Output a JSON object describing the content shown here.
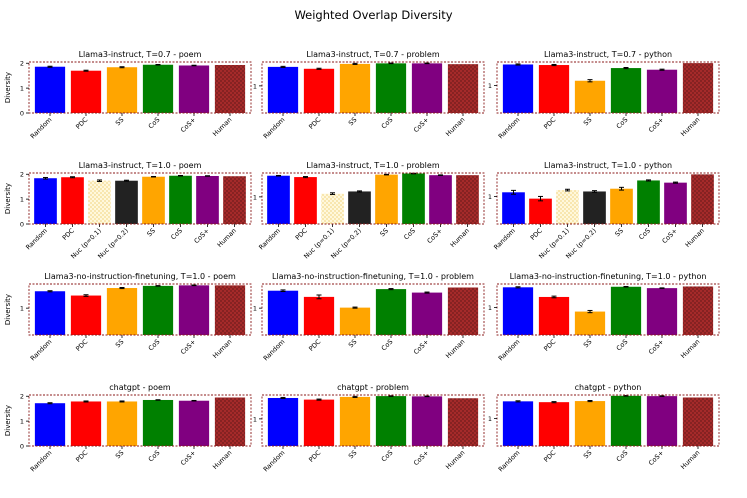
{
  "figure": {
    "suptitle": "Weighted Overlap Diversity"
  },
  "colors": {
    "Random": "#0000ff",
    "PDC": "#ff0000",
    "SS": "#ffa500",
    "CoS": "#008000",
    "CoS+": "#800080",
    "Human": "#a52a2a",
    "Nuc (p=0.1)": "#fff8dc",
    "Nuc (p=0.2)": "#222222",
    "spine": "#8b1a1a"
  },
  "chart_data": [
    {
      "type": "bar",
      "title": "Llama3-instruct, T=0.7 - poem",
      "ylabel": "Diversity",
      "ylim": [
        0,
        2.05
      ],
      "yticks": [
        0,
        1,
        2
      ],
      "categories": [
        "Random",
        "PDC",
        "SS",
        "CoS",
        "CoS+",
        "Human"
      ],
      "values": [
        1.86,
        1.7,
        1.84,
        1.94,
        1.91,
        1.93
      ],
      "errors": [
        0.02,
        0.02,
        0.02,
        0.01,
        0.01,
        0.0
      ]
    },
    {
      "type": "bar",
      "title": "Llama3-instruct, T=0.7 - problem",
      "ylabel": "",
      "ylim": [
        0,
        1.88
      ],
      "yticks": [
        1
      ],
      "categories": [
        "Random",
        "PDC",
        "SS",
        "CoS",
        "CoS+",
        "Human"
      ],
      "values": [
        1.7,
        1.63,
        1.81,
        1.83,
        1.83,
        1.8
      ],
      "errors": [
        0.02,
        0.02,
        0.02,
        0.01,
        0.01,
        0.0
      ]
    },
    {
      "type": "bar",
      "title": "Llama3-instruct, T=0.7 - python",
      "ylabel": "",
      "ylim": [
        0,
        1.85
      ],
      "yticks": [
        1
      ],
      "categories": [
        "Random",
        "PDC",
        "SS",
        "CoS",
        "CoS+",
        "Human"
      ],
      "values": [
        1.76,
        1.74,
        1.17,
        1.63,
        1.57,
        1.81
      ],
      "errors": [
        0.02,
        0.02,
        0.04,
        0.02,
        0.02,
        0.0
      ]
    },
    {
      "type": "bar",
      "title": "Llama3-instruct, T=1.0 - poem",
      "ylabel": "Diversity",
      "ylim": [
        0,
        2.05
      ],
      "yticks": [
        0,
        1,
        2
      ],
      "categories": [
        "Random",
        "PDC",
        "Nuc (p=0.1)",
        "Nuc (p=0.2)",
        "SS",
        "CoS",
        "CoS+",
        "Human"
      ],
      "values": [
        1.84,
        1.88,
        1.74,
        1.74,
        1.9,
        1.94,
        1.93,
        1.92
      ],
      "errors": [
        0.03,
        0.02,
        0.03,
        0.02,
        0.01,
        0.01,
        0.01,
        0.0
      ]
    },
    {
      "type": "bar",
      "title": "Llama3-instruct, T=1.0 - problem",
      "ylabel": "",
      "ylim": [
        0,
        1.88
      ],
      "yticks": [
        1
      ],
      "categories": [
        "Random",
        "PDC",
        "Nuc (p=0.1)",
        "Nuc (p=0.2)",
        "SS",
        "CoS",
        "CoS+",
        "Human"
      ],
      "values": [
        1.78,
        1.73,
        1.12,
        1.2,
        1.82,
        1.86,
        1.8,
        1.8
      ],
      "errors": [
        0.01,
        0.02,
        0.03,
        0.02,
        0.01,
        0.01,
        0.01,
        0.0
      ]
    },
    {
      "type": "bar",
      "title": "Llama3-instruct, T=1.0 - python",
      "ylabel": "",
      "ylim": [
        0,
        1.85
      ],
      "yticks": [
        1
      ],
      "categories": [
        "Random",
        "PDC",
        "Nuc (p=0.1)",
        "Nuc (p=0.2)",
        "SS",
        "CoS",
        "CoS+",
        "Human"
      ],
      "values": [
        1.15,
        0.92,
        1.23,
        1.18,
        1.28,
        1.58,
        1.5,
        1.8
      ],
      "errors": [
        0.07,
        0.08,
        0.03,
        0.03,
        0.05,
        0.02,
        0.02,
        0.0
      ]
    },
    {
      "type": "bar",
      "title": "Llama3-no-instruction-finetuning, T=1.0 - poem",
      "ylabel": "Diversity",
      "ylim": [
        0,
        1.9
      ],
      "yticks": [
        1
      ],
      "categories": [
        "Random",
        "PDC",
        "SS",
        "CoS",
        "CoS+",
        "Human"
      ],
      "values": [
        1.63,
        1.47,
        1.75,
        1.83,
        1.85,
        1.85
      ],
      "errors": [
        0.02,
        0.03,
        0.02,
        0.01,
        0.01,
        0.0
      ]
    },
    {
      "type": "bar",
      "title": "Llama3-no-instruction-finetuning, T=1.0 - problem",
      "ylabel": "",
      "ylim": [
        0,
        1.9
      ],
      "yticks": [
        1
      ],
      "categories": [
        "Random",
        "PDC",
        "SS",
        "CoS",
        "CoS+",
        "Human"
      ],
      "values": [
        1.65,
        1.42,
        1.02,
        1.71,
        1.58,
        1.77
      ],
      "errors": [
        0.03,
        0.07,
        0.02,
        0.02,
        0.02,
        0.0
      ]
    },
    {
      "type": "bar",
      "title": "Llama3-no-instruction-finetuning, T=1.0 - python",
      "ylabel": "",
      "ylim": [
        0,
        1.85
      ],
      "yticks": [
        1
      ],
      "categories": [
        "Random",
        "PDC",
        "SS",
        "CoS",
        "CoS+",
        "Human"
      ],
      "values": [
        1.73,
        1.38,
        0.85,
        1.75,
        1.7,
        1.76
      ],
      "errors": [
        0.02,
        0.03,
        0.04,
        0.01,
        0.01,
        0.0
      ]
    },
    {
      "type": "bar",
      "title": "chatgpt - poem",
      "ylabel": "Diversity",
      "ylim": [
        0,
        2.05
      ],
      "yticks": [
        0,
        1,
        2
      ],
      "categories": [
        "Random",
        "PDC",
        "SS",
        "CoS",
        "CoS+",
        "Human"
      ],
      "values": [
        1.72,
        1.79,
        1.79,
        1.85,
        1.82,
        1.95
      ],
      "errors": [
        0.02,
        0.02,
        0.02,
        0.01,
        0.01,
        0.0
      ]
    },
    {
      "type": "bar",
      "title": "chatgpt - problem",
      "ylabel": "",
      "ylim": [
        0,
        1.88
      ],
      "yticks": [
        1
      ],
      "categories": [
        "Random",
        "PDC",
        "SS",
        "CoS",
        "CoS+",
        "Human"
      ],
      "values": [
        1.77,
        1.71,
        1.81,
        1.84,
        1.83,
        1.76
      ],
      "errors": [
        0.02,
        0.02,
        0.02,
        0.01,
        0.01,
        0.0
      ]
    },
    {
      "type": "bar",
      "title": "chatgpt - python",
      "ylabel": "",
      "ylim": [
        0,
        1.85
      ],
      "yticks": [
        1
      ],
      "categories": [
        "Random",
        "PDC",
        "SS",
        "CoS",
        "CoS+",
        "Human"
      ],
      "values": [
        1.62,
        1.59,
        1.63,
        1.82,
        1.81,
        1.76
      ],
      "errors": [
        0.02,
        0.02,
        0.02,
        0.01,
        0.01,
        0.0
      ]
    }
  ]
}
